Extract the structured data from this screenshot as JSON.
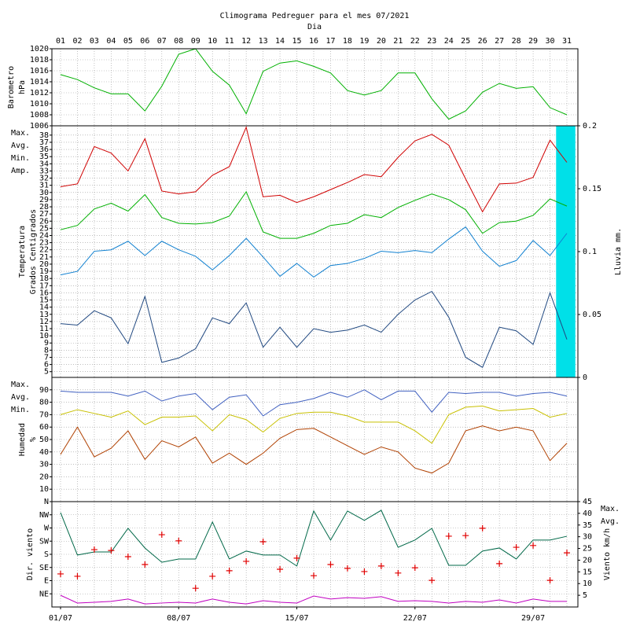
{
  "chart_data": [
    {
      "type": "line",
      "title": "Climograma Pedreguer para el mes 07/2021",
      "subtitle": "Dia",
      "categories": [
        "01",
        "02",
        "03",
        "04",
        "05",
        "06",
        "07",
        "08",
        "09",
        "10",
        "11",
        "12",
        "13",
        "14",
        "15",
        "16",
        "17",
        "18",
        "19",
        "20",
        "21",
        "22",
        "23",
        "24",
        "25",
        "26",
        "27",
        "28",
        "29",
        "30",
        "31"
      ],
      "ylabel_lines": [
        "Barometro",
        "hPa"
      ],
      "label_color": "#00a000",
      "series": [
        {
          "color": "#00b000",
          "values": [
            1015.3,
            1014.4,
            1012.9,
            1011.8,
            1011.8,
            1008.7,
            1013.2,
            1019.0,
            1020.0,
            1015.9,
            1013.4,
            1008.2,
            1015.9,
            1017.4,
            1017.8,
            1016.8,
            1015.6,
            1012.4,
            1011.6,
            1012.4,
            1015.6,
            1015.6,
            1010.9,
            1007.2,
            1008.7,
            1012.1,
            1013.7,
            1012.8,
            1013.1,
            1009.3,
            1008.0
          ]
        }
      ],
      "ylim": [
        1006,
        1020
      ],
      "yticks": [
        1006,
        1008,
        1010,
        1012,
        1014,
        1016,
        1018,
        1020
      ],
      "grid": true
    },
    {
      "type": "line",
      "ylabel_lines": [
        "Temperatura",
        "Grados Centigrados"
      ],
      "label_color": "#d00000",
      "y2label": "Lluvia mm.",
      "y2label_color": "#00c8d8",
      "series": [
        {
          "name": "Max.",
          "color": "#d00000",
          "values": [
            30.8,
            31.2,
            36.4,
            35.5,
            33.0,
            37.5,
            30.2,
            29.8,
            30.1,
            32.4,
            33.6,
            39.1,
            29.4,
            29.6,
            28.6,
            29.4,
            30.4,
            31.4,
            32.5,
            32.2,
            34.9,
            37.2,
            38.1,
            36.6,
            31.9,
            27.3,
            31.2,
            31.3,
            32.1,
            37.3,
            34.2
          ]
        },
        {
          "name": "Avg.",
          "color": "#00b000",
          "values": [
            24.8,
            25.4,
            27.7,
            28.5,
            27.4,
            29.7,
            26.5,
            25.7,
            25.6,
            25.8,
            26.7,
            30.1,
            24.5,
            23.6,
            23.6,
            24.3,
            25.4,
            25.7,
            26.9,
            26.5,
            27.9,
            28.9,
            29.8,
            29.0,
            27.6,
            24.3,
            25.8,
            26.0,
            26.8,
            29.1,
            28.1
          ]
        },
        {
          "name": "Min.",
          "color": "#1080d0",
          "values": [
            18.5,
            19.0,
            21.8,
            22.0,
            23.2,
            21.2,
            23.2,
            22.0,
            21.1,
            19.2,
            21.2,
            23.6,
            21.0,
            18.3,
            20.1,
            18.2,
            19.8,
            20.1,
            20.8,
            21.8,
            21.6,
            21.9,
            21.6,
            23.5,
            25.2,
            21.8,
            19.7,
            20.5,
            23.3,
            21.2,
            24.3
          ]
        },
        {
          "name": "Amp.",
          "color": "#204880",
          "values": [
            11.7,
            11.5,
            13.5,
            12.5,
            8.9,
            15.5,
            6.3,
            6.9,
            8.2,
            12.5,
            11.7,
            14.6,
            8.4,
            11.2,
            8.4,
            11.0,
            10.5,
            10.8,
            11.5,
            10.5,
            13.0,
            15.0,
            16.2,
            12.6,
            7.0,
            5.6,
            11.2,
            10.7,
            8.8,
            16.0,
            9.5
          ]
        }
      ],
      "rain": {
        "type": "bar",
        "color": "#00e0e8",
        "axis": "y2",
        "values": [
          0,
          0,
          0,
          0,
          0,
          0,
          0,
          0,
          0,
          0,
          0,
          0,
          0,
          0,
          0,
          0,
          0,
          0,
          0,
          0,
          0,
          0,
          0,
          0,
          0,
          0,
          0,
          0,
          0,
          0,
          0.2
        ]
      },
      "ylim": [
        4.2,
        39.3
      ],
      "yticks": [
        5,
        6,
        7,
        8,
        9,
        10,
        11,
        12,
        13,
        14,
        15,
        16,
        17,
        18,
        19,
        20,
        21,
        22,
        23,
        24,
        25,
        26,
        27,
        28,
        29,
        30,
        31,
        32,
        33,
        34,
        35,
        36,
        37,
        38
      ],
      "y2lim": [
        0,
        0.2
      ],
      "y2ticks": [
        0,
        0.05,
        0.1,
        0.15,
        0.2
      ],
      "grid": true
    },
    {
      "type": "line",
      "ylabel_lines": [
        "Humedad",
        "%"
      ],
      "label_color": "#c03000",
      "series": [
        {
          "name": "Max.",
          "color": "#4060c0",
          "values": [
            89,
            88,
            88,
            88,
            85,
            89,
            81,
            85,
            87,
            74,
            84,
            86,
            69,
            78,
            80,
            83,
            88,
            84,
            90,
            82,
            89,
            89,
            72,
            88,
            87,
            88,
            88,
            85,
            87,
            88,
            85
          ]
        },
        {
          "name": "Avg.",
          "color": "#c8c000",
          "values": [
            70,
            74,
            71,
            68,
            73,
            62,
            68,
            68,
            69,
            57,
            70,
            66,
            56,
            67,
            71,
            72,
            72,
            69,
            64,
            64,
            64,
            57,
            47,
            70,
            76,
            77,
            73,
            74,
            75,
            68,
            71
          ]
        },
        {
          "name": "Min.",
          "color": "#b04000",
          "values": [
            38,
            60,
            36,
            43,
            57,
            34,
            49,
            44,
            52,
            31,
            39,
            30,
            39,
            51,
            58,
            59,
            52,
            45,
            38,
            44,
            40,
            27,
            23,
            31,
            57,
            61,
            57,
            60,
            57,
            33,
            47
          ]
        }
      ],
      "ylim": [
        0,
        100
      ],
      "yticks": [
        10,
        20,
        30,
        40,
        50,
        60,
        70,
        80,
        90
      ],
      "grid": true
    },
    {
      "type": "line",
      "ylabel_lines": [
        "Dir. viento"
      ],
      "label_color": "#d00000",
      "y2label": "Viento km/h",
      "y2label_color": "#c000c0",
      "direction": {
        "type": "scatter",
        "color": "#e00000",
        "values": [
          113,
          105,
          196,
          193,
          172,
          145,
          247,
          226,
          64,
          105,
          124,
          156,
          223,
          129,
          167,
          107,
          145,
          132,
          121,
          140,
          116,
          134,
          91,
          242,
          244,
          269,
          148,
          204,
          210,
          91,
          185
        ]
      },
      "series": [
        {
          "name": "Max.",
          "color": "#006848",
          "axis": "y2",
          "values": [
            40.3,
            22.2,
            23.5,
            23.5,
            33.6,
            25.2,
            19.1,
            20.5,
            20.5,
            36.3,
            20.5,
            23.9,
            22.2,
            22.2,
            17.5,
            41.0,
            28.6,
            41.0,
            37.0,
            41.3,
            25.5,
            28.6,
            33.6,
            17.8,
            17.8,
            23.9,
            25.2,
            20.5,
            28.6,
            28.6,
            30.2
          ]
        },
        {
          "name": "Avg.",
          "color": "#c000c0",
          "axis": "y2",
          "values": [
            5.0,
            1.7,
            2.0,
            2.4,
            3.4,
            1.3,
            1.7,
            2.0,
            1.7,
            3.4,
            2.0,
            1.3,
            2.7,
            2.0,
            1.7,
            4.7,
            3.4,
            4.0,
            3.7,
            4.4,
            2.4,
            2.7,
            2.4,
            1.7,
            2.4,
            2.0,
            3.0,
            1.7,
            3.4,
            2.4,
            2.4
          ]
        }
      ],
      "ylim": [
        0,
        360
      ],
      "yticks": [
        {
          "value": 45,
          "label": "NE"
        },
        {
          "value": 90,
          "label": "E"
        },
        {
          "value": 135,
          "label": "SE"
        },
        {
          "value": 180,
          "label": "S"
        },
        {
          "value": 225,
          "label": "SW"
        },
        {
          "value": 270,
          "label": "W"
        },
        {
          "value": 315,
          "label": "NW"
        },
        {
          "value": 360,
          "label": "N"
        }
      ],
      "y2lim": [
        0,
        45
      ],
      "y2ticks": [
        5,
        10,
        15,
        20,
        25,
        30,
        35,
        40,
        45
      ],
      "xticks": [
        {
          "value": 1,
          "label": "01/07"
        },
        {
          "value": 8,
          "label": "08/07"
        },
        {
          "value": 15,
          "label": "15/07"
        },
        {
          "value": 22,
          "label": "22/07"
        },
        {
          "value": 29,
          "label": "29/07"
        }
      ],
      "grid": true
    }
  ]
}
